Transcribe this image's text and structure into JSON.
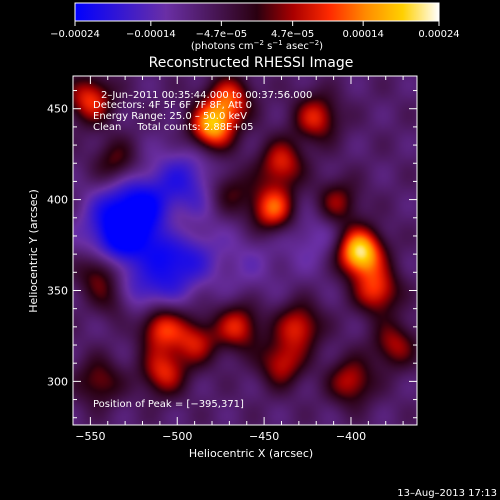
{
  "chart_data": {
    "type": "heatmap",
    "title": "Reconstructed RHESSI Image",
    "xlabel": "Heliocentric X (arcsec)",
    "ylabel": "Heliocentric Y (arcsec)",
    "xlim": [
      -560,
      -362
    ],
    "ylim": [
      276,
      468
    ],
    "x_ticks": [
      -550,
      -500,
      -450,
      -400
    ],
    "y_ticks": [
      300,
      350,
      400,
      450
    ],
    "x_tick_labels": [
      "−550",
      "−500",
      "−450",
      "−400"
    ],
    "y_tick_labels": [
      "300",
      "350",
      "400",
      "450"
    ],
    "colorbar": {
      "range": [
        -0.00024,
        0.00024
      ],
      "ticks": [
        -0.00024,
        -0.00014,
        -4.7e-05,
        4.7e-05,
        0.00014,
        0.00024
      ],
      "tick_labels": [
        "−0.00024",
        "−0.00014",
        "−4.7e−05",
        "4.7e−05",
        "0.00014",
        "0.00024"
      ],
      "units_main": "(photons cm",
      "units_exp1": "−2",
      "units_mid": " s",
      "units_exp2": "−1",
      "units_end": " asec",
      "units_exp3": "−2",
      "units_close": ")"
    },
    "annotations": {
      "time_range": "2–Jun–2011 00:35:44.000 to 00:37:56.000",
      "detectors": "Detectors: 4F 5F 6F 7F 8F, Att 0",
      "energy": "Energy Range: 25.0 – 50.0 keV",
      "clean": "Clean     Total counts: 2.88E+05",
      "peak": "Position of Peak = [−395,371]"
    },
    "peak": [
      -395,
      371
    ],
    "sources": [
      {
        "x": -395,
        "y": 371,
        "amp": 1.0
      },
      {
        "x": -385,
        "y": 350,
        "amp": 0.55
      },
      {
        "x": -480,
        "y": 440,
        "amp": 0.8
      },
      {
        "x": -470,
        "y": 455,
        "amp": 0.55
      },
      {
        "x": -420,
        "y": 445,
        "amp": 0.5
      },
      {
        "x": -440,
        "y": 420,
        "amp": 0.5
      },
      {
        "x": -445,
        "y": 395,
        "amp": 0.65
      },
      {
        "x": -408,
        "y": 398,
        "amp": 0.4
      },
      {
        "x": -550,
        "y": 455,
        "amp": 0.55
      },
      {
        "x": -535,
        "y": 420,
        "amp": 0.35
      },
      {
        "x": -545,
        "y": 360,
        "amp": 0.45
      },
      {
        "x": -520,
        "y": 362,
        "amp": 0.25
      },
      {
        "x": -535,
        "y": 345,
        "amp": 0.35
      },
      {
        "x": -510,
        "y": 330,
        "amp": 0.6
      },
      {
        "x": -490,
        "y": 322,
        "amp": 0.45
      },
      {
        "x": -508,
        "y": 305,
        "amp": 0.5
      },
      {
        "x": -465,
        "y": 330,
        "amp": 0.5
      },
      {
        "x": -430,
        "y": 330,
        "amp": 0.5
      },
      {
        "x": -440,
        "y": 310,
        "amp": 0.45
      },
      {
        "x": -400,
        "y": 300,
        "amp": 0.45
      },
      {
        "x": -375,
        "y": 320,
        "amp": 0.4
      },
      {
        "x": -545,
        "y": 300,
        "amp": 0.35
      },
      {
        "x": -500,
        "y": 383,
        "amp": 0.3
      },
      {
        "x": -470,
        "y": 405,
        "amp": 0.3
      },
      {
        "x": -525,
        "y": 395,
        "amp": -0.5
      },
      {
        "x": -535,
        "y": 380,
        "amp": -0.45
      },
      {
        "x": -500,
        "y": 370,
        "amp": -0.5
      },
      {
        "x": -522,
        "y": 352,
        "amp": -0.45
      },
      {
        "x": -495,
        "y": 410,
        "amp": -0.35
      },
      {
        "x": -420,
        "y": 380,
        "amp": -0.2
      },
      {
        "x": -460,
        "y": 365,
        "amp": -0.15
      }
    ]
  },
  "footer_timestamp": "13–Aug–2013 17:13"
}
